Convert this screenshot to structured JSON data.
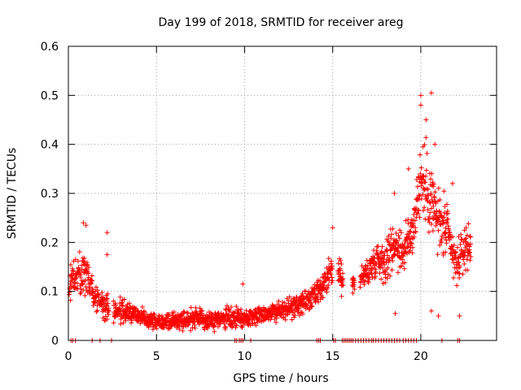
{
  "chart_data": {
    "type": "scatter",
    "title": "Day 199 of 2018, SRMTID for receiver areg",
    "xlabel": "GPS time / hours",
    "ylabel": "SRMTID / TECUs",
    "xlim": [
      0,
      24.3
    ],
    "ylim": [
      0,
      0.6
    ],
    "x_ticks": [
      0,
      5,
      10,
      15,
      20
    ],
    "x_tick_labels": [
      "0",
      "5",
      "10",
      "15",
      "20"
    ],
    "y_ticks": [
      0,
      0.1,
      0.2,
      0.3,
      0.4,
      0.5,
      0.6
    ],
    "y_tick_labels": [
      "0",
      "0.1",
      "0.2",
      "0.3",
      "0.4",
      "0.5",
      "0.6"
    ],
    "grid": true,
    "marker": "plus",
    "color": "#ff0000",
    "profile_description": "Approximate envelope of the point cloud (hour, typical SRMTID, spread)",
    "profile": [
      [
        0.0,
        0.12,
        0.05
      ],
      [
        0.5,
        0.13,
        0.05
      ],
      [
        1.0,
        0.14,
        0.07
      ],
      [
        1.5,
        0.09,
        0.04
      ],
      [
        2.0,
        0.07,
        0.04
      ],
      [
        2.5,
        0.06,
        0.03
      ],
      [
        3.0,
        0.06,
        0.03
      ],
      [
        4.0,
        0.05,
        0.025
      ],
      [
        5.0,
        0.04,
        0.025
      ],
      [
        6.0,
        0.04,
        0.025
      ],
      [
        7.0,
        0.045,
        0.03
      ],
      [
        8.0,
        0.04,
        0.025
      ],
      [
        9.0,
        0.045,
        0.03
      ],
      [
        10.0,
        0.045,
        0.025
      ],
      [
        11.0,
        0.055,
        0.025
      ],
      [
        12.0,
        0.06,
        0.03
      ],
      [
        13.0,
        0.07,
        0.03
      ],
      [
        14.0,
        0.09,
        0.035
      ],
      [
        14.5,
        0.11,
        0.04
      ],
      [
        15.0,
        0.15,
        0.05
      ],
      [
        16.0,
        0.11,
        0.03
      ],
      [
        17.0,
        0.14,
        0.04
      ],
      [
        17.5,
        0.17,
        0.05
      ],
      [
        18.0,
        0.16,
        0.06
      ],
      [
        18.5,
        0.2,
        0.07
      ],
      [
        19.0,
        0.18,
        0.06
      ],
      [
        19.5,
        0.22,
        0.08
      ],
      [
        20.0,
        0.33,
        0.1
      ],
      [
        20.5,
        0.3,
        0.12
      ],
      [
        21.0,
        0.24,
        0.1
      ],
      [
        21.5,
        0.22,
        0.08
      ],
      [
        22.0,
        0.15,
        0.06
      ],
      [
        22.5,
        0.19,
        0.06
      ]
    ],
    "gaps": [
      [
        2.3,
        2.55
      ],
      [
        15.0,
        15.3
      ],
      [
        15.6,
        16.1
      ],
      [
        16.25,
        16.55
      ],
      [
        22.85,
        24.3
      ]
    ],
    "outliers": [
      [
        0.85,
        0.24
      ],
      [
        1.0,
        0.235
      ],
      [
        2.2,
        0.22
      ],
      [
        2.2,
        0.175
      ],
      [
        9.9,
        0.115
      ],
      [
        15.0,
        0.23
      ],
      [
        15.5,
        0.09
      ],
      [
        18.5,
        0.3
      ],
      [
        18.55,
        0.055
      ],
      [
        19.3,
        0.35
      ],
      [
        20.0,
        0.5
      ],
      [
        20.0,
        0.48
      ],
      [
        20.6,
        0.505
      ],
      [
        20.3,
        0.45
      ],
      [
        20.8,
        0.4
      ],
      [
        21.0,
        0.05
      ],
      [
        21.8,
        0.32
      ],
      [
        22.2,
        0.05
      ],
      [
        20.6,
        0.06
      ]
    ],
    "zero_points_x": [
      0.15,
      0.25,
      0.4,
      1.35,
      1.8,
      2.45,
      9.45,
      9.55,
      9.7,
      9.8,
      9.9,
      10.35,
      14.1,
      14.2,
      14.3,
      15.05,
      15.15,
      15.55,
      15.65,
      15.75,
      15.85,
      15.95,
      16.05,
      16.15,
      16.3,
      16.45,
      16.6,
      16.75,
      16.9,
      17.05,
      17.2,
      17.3,
      17.45,
      17.6,
      17.75,
      17.9,
      18.05,
      18.2,
      18.35,
      18.5,
      18.65,
      18.8,
      19.0,
      19.15,
      19.3,
      19.45,
      19.6,
      19.75,
      21.2,
      22.1,
      22.2
    ]
  }
}
